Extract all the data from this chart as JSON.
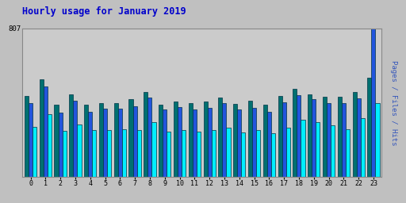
{
  "title": "Hourly usage for January 2019",
  "title_color": "#0000cc",
  "ylabel_right": "Pages / Files / Hits",
  "ymax": 807,
  "hours": [
    0,
    1,
    2,
    3,
    4,
    5,
    6,
    7,
    8,
    9,
    10,
    11,
    12,
    13,
    14,
    15,
    16,
    17,
    18,
    19,
    20,
    21,
    22,
    23
  ],
  "pages": [
    440,
    530,
    390,
    450,
    390,
    400,
    400,
    420,
    460,
    390,
    410,
    400,
    410,
    430,
    395,
    415,
    390,
    440,
    480,
    450,
    435,
    435,
    460,
    540
  ],
  "files": [
    400,
    490,
    350,
    415,
    355,
    370,
    370,
    385,
    430,
    365,
    380,
    365,
    375,
    400,
    365,
    375,
    355,
    405,
    445,
    420,
    400,
    400,
    425,
    807
  ],
  "hits": [
    270,
    340,
    250,
    285,
    255,
    255,
    260,
    255,
    295,
    245,
    255,
    245,
    255,
    265,
    240,
    255,
    235,
    265,
    310,
    295,
    280,
    260,
    320,
    400
  ],
  "color_pages": "#007070",
  "color_files": "#2255dd",
  "color_hits": "#00eeff",
  "bar_edge": "#003344",
  "bg_color": "#c0c0c0",
  "plot_bg": "#cbcbcb",
  "right_label_colors": [
    "#3355cc",
    "#00aaaa",
    "#aaaaff"
  ],
  "grid_color": "#aaaaaa"
}
